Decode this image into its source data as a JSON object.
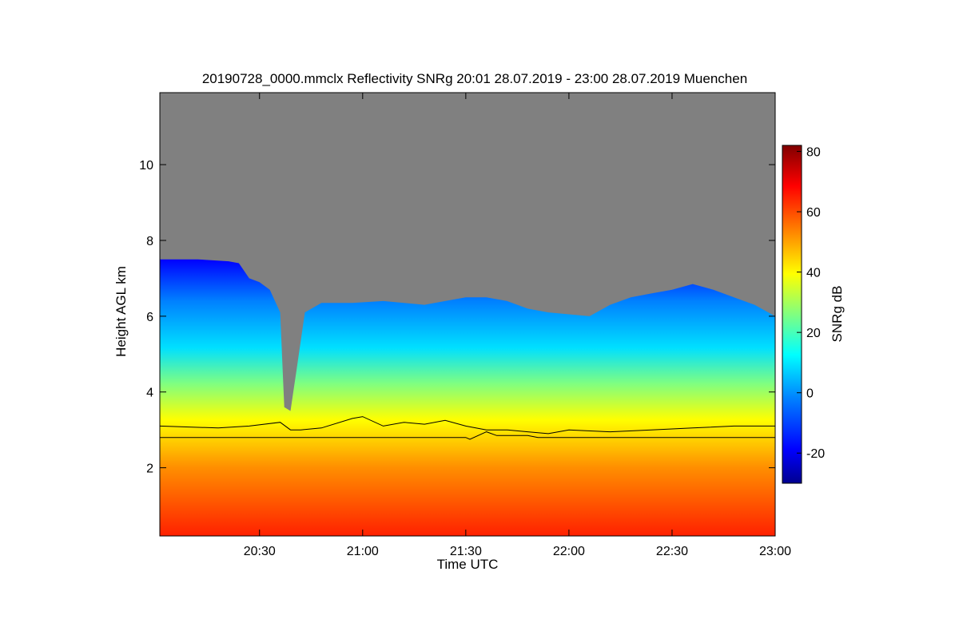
{
  "chart_data": {
    "type": "heatmap",
    "title": "20190728_0000.mmclx Reflectivity SNRg   20:01 28.07.2019 - 23:00 28.07.2019 Muenchen",
    "xlabel": "Time UTC",
    "ylabel": "Height AGL km",
    "colorbar_label": "SNRg dB",
    "x_range_hours": [
      20.0167,
      23.0
    ],
    "y_range_km": [
      0.2,
      11.9
    ],
    "x_ticks": [
      {
        "value": 20.5,
        "label": "20:30"
      },
      {
        "value": 21.0,
        "label": "21:00"
      },
      {
        "value": 21.5,
        "label": "21:30"
      },
      {
        "value": 22.0,
        "label": "22:00"
      },
      {
        "value": 22.5,
        "label": "22:30"
      },
      {
        "value": 23.0,
        "label": "23:00"
      }
    ],
    "y_ticks": [
      {
        "value": 2,
        "label": "2"
      },
      {
        "value": 4,
        "label": "4"
      },
      {
        "value": 6,
        "label": "6"
      },
      {
        "value": 8,
        "label": "8"
      },
      {
        "value": 10,
        "label": "10"
      }
    ],
    "colorbar_range": [
      -30,
      82
    ],
    "colorbar_ticks": [
      {
        "value": -20,
        "label": "-20"
      },
      {
        "value": 0,
        "label": "0"
      },
      {
        "value": 20,
        "label": "20"
      },
      {
        "value": 40,
        "label": "40"
      },
      {
        "value": 60,
        "label": "60"
      },
      {
        "value": 80,
        "label": "80"
      }
    ],
    "colormap": [
      "#00008f",
      "#0000ff",
      "#0080ff",
      "#00ffff",
      "#80ff80",
      "#ffff00",
      "#ff8000",
      "#ff0000",
      "#800000"
    ],
    "no_data_color": "#808080",
    "cloud_top_km": [
      [
        20.0167,
        7.5
      ],
      [
        20.2,
        7.5
      ],
      [
        20.35,
        7.45
      ],
      [
        20.4,
        7.4
      ],
      [
        20.45,
        7.0
      ],
      [
        20.5,
        6.9
      ],
      [
        20.55,
        6.7
      ],
      [
        20.6,
        6.1
      ],
      [
        20.62,
        3.6
      ],
      [
        20.65,
        3.5
      ],
      [
        20.68,
        4.6
      ],
      [
        20.72,
        6.1
      ],
      [
        20.8,
        6.35
      ],
      [
        20.95,
        6.35
      ],
      [
        21.1,
        6.4
      ],
      [
        21.2,
        6.35
      ],
      [
        21.3,
        6.3
      ],
      [
        21.4,
        6.4
      ],
      [
        21.5,
        6.5
      ],
      [
        21.6,
        6.5
      ],
      [
        21.7,
        6.4
      ],
      [
        21.8,
        6.2
      ],
      [
        21.9,
        6.1
      ],
      [
        22.0,
        6.05
      ],
      [
        22.1,
        6.0
      ],
      [
        22.2,
        6.3
      ],
      [
        22.3,
        6.5
      ],
      [
        22.4,
        6.6
      ],
      [
        22.5,
        6.7
      ],
      [
        22.6,
        6.85
      ],
      [
        22.7,
        6.7
      ],
      [
        22.8,
        6.5
      ],
      [
        22.9,
        6.3
      ],
      [
        23.0,
        6.0
      ]
    ],
    "series": [
      {
        "type": "line",
        "x": [
          20.0167,
          20.3,
          20.45,
          20.6,
          20.65,
          20.7,
          20.8,
          20.95,
          21.0,
          21.1,
          21.2,
          21.3,
          21.4,
          21.5,
          21.6,
          21.7,
          21.8,
          21.9,
          22.0,
          22.2,
          22.4,
          22.6,
          22.8,
          23.0
        ],
        "values": [
          3.1,
          3.05,
          3.1,
          3.2,
          3.0,
          3.0,
          3.05,
          3.3,
          3.35,
          3.1,
          3.2,
          3.15,
          3.25,
          3.1,
          3.0,
          3.0,
          2.95,
          2.9,
          3.0,
          2.95,
          3.0,
          3.05,
          3.1,
          3.1
        ]
      },
      {
        "type": "line",
        "x": [
          20.0167,
          21.5,
          21.52,
          21.6,
          21.65,
          21.8,
          21.85,
          23.0
        ],
        "values": [
          2.8,
          2.8,
          2.75,
          2.95,
          2.85,
          2.85,
          2.8,
          2.8
        ]
      }
    ],
    "grid": false,
    "legend": "none"
  }
}
